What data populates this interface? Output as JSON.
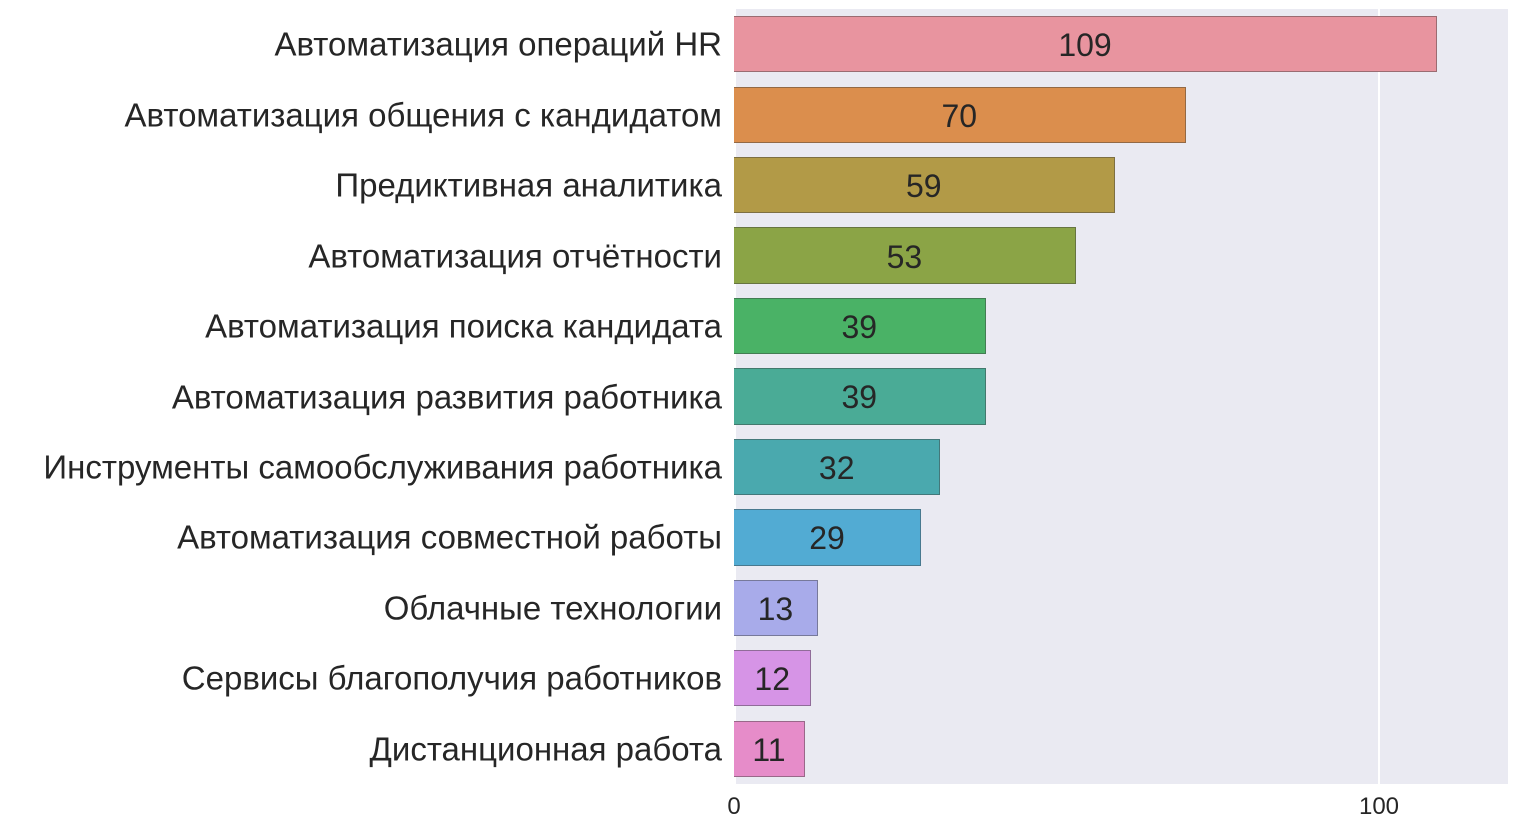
{
  "chart_data": {
    "type": "bar",
    "orientation": "horizontal",
    "title": "",
    "xlabel": "",
    "ylabel": "",
    "xlim": [
      0,
      120
    ],
    "xticks": [
      0,
      100
    ],
    "xtick_labels": [
      "0",
      "100"
    ],
    "grid": true,
    "legend": null,
    "categories": [
      "Автоматизация операций HR",
      "Автоматизация общения с кандидатом",
      "Предиктивная аналитика",
      "Автоматизация отчётности",
      "Автоматизация поиска кандидата",
      "Автоматизация развития работника",
      "Инструменты самообслуживания работника",
      "Автоматизация совместной работы",
      "Облачные технологии",
      "Сервисы благополучия работников",
      "Дистанционная работа"
    ],
    "values": [
      109,
      70,
      59,
      53,
      39,
      39,
      32,
      29,
      13,
      12,
      11
    ],
    "value_labels": [
      "109",
      "70",
      "59",
      "53",
      "39",
      "39",
      "32",
      "29",
      "13",
      "12",
      "11"
    ],
    "colors": [
      "#e8949f",
      "#db8e4d",
      "#b29a47",
      "#8ba446",
      "#4ab266",
      "#4aab96",
      "#4aa9ae",
      "#52abd3",
      "#a8abea",
      "#d694e6",
      "#e68cc9"
    ]
  },
  "axis": {
    "x_tick_0": "0",
    "x_tick_100": "100"
  },
  "style": {
    "plot_background": "#eaeaf2",
    "grid_color": "#ffffff"
  }
}
